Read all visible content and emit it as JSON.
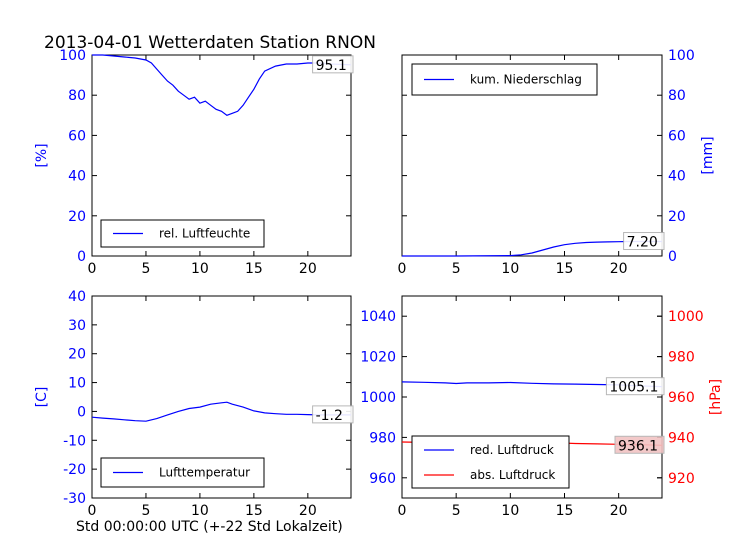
{
  "title": "2013-04-01 Wetterdaten Station RNON",
  "xlabel": "Std 00:00:00 UTC (+-22 Std Lokalzeit)",
  "colors": {
    "blue": "#0000ff",
    "red": "#ff0000",
    "annotation_bg": "#f2c4c4"
  },
  "chart_data": [
    {
      "type": "line",
      "ylabel": "[%]",
      "xlim": [
        0,
        24
      ],
      "ylim": [
        0,
        100
      ],
      "xticks": [
        0,
        5,
        10,
        15,
        20
      ],
      "yticks": [
        0,
        20,
        40,
        60,
        80,
        100
      ],
      "legend_position": "bottom",
      "annotation": "95.1",
      "series": [
        {
          "name": "rel. Luftfeuchte",
          "color": "#0000ff",
          "x": [
            0,
            1,
            2,
            3,
            4,
            5,
            5.5,
            6,
            6.5,
            7,
            7.5,
            8,
            8.5,
            9,
            9.5,
            10,
            10.5,
            11,
            11.5,
            12,
            12.5,
            13,
            13.5,
            14,
            14.5,
            15,
            15.5,
            16,
            17,
            18,
            19,
            20,
            21,
            22,
            23,
            24
          ],
          "y": [
            100,
            100,
            99.5,
            99,
            98.5,
            97.5,
            96,
            93,
            90,
            87,
            85,
            82,
            80,
            78,
            79,
            76,
            77,
            75,
            73,
            72,
            70,
            71,
            72,
            75,
            79,
            83,
            88,
            92,
            94.5,
            95.5,
            95.5,
            96,
            96,
            95.5,
            95.3,
            95.1
          ]
        }
      ]
    },
    {
      "type": "line",
      "ylabel": "[mm]",
      "xlim": [
        0,
        24
      ],
      "ylim": [
        0,
        100
      ],
      "xticks": [
        0,
        5,
        10,
        15,
        20
      ],
      "yticks": [
        0,
        20,
        40,
        60,
        80,
        100
      ],
      "legend_position": "top-left",
      "annotation": "7.20",
      "series": [
        {
          "name": "kum. Niederschlag",
          "color": "#0000ff",
          "x": [
            0,
            5,
            10,
            11,
            12,
            13,
            14,
            15,
            16,
            17,
            18,
            19,
            20,
            21,
            22,
            23,
            24
          ],
          "y": [
            0,
            0,
            0.2,
            0.6,
            1.5,
            3,
            4.5,
            5.6,
            6.3,
            6.7,
            6.9,
            7,
            7.1,
            7.2,
            7.2,
            7.2,
            7.2
          ]
        }
      ]
    },
    {
      "type": "line",
      "ylabel": "[C]",
      "xlim": [
        0,
        24
      ],
      "ylim": [
        -30,
        40
      ],
      "xticks": [
        0,
        5,
        10,
        15,
        20
      ],
      "yticks": [
        -30,
        -20,
        -10,
        0,
        10,
        20,
        30,
        40
      ],
      "legend_position": "bottom",
      "annotation": "-1.2",
      "series": [
        {
          "name": "Lufttemperatur",
          "color": "#0000ff",
          "x": [
            0,
            1,
            2,
            3,
            4,
            5,
            6,
            7,
            8,
            9,
            10,
            11,
            12,
            12.5,
            13,
            14,
            15,
            16,
            17,
            18,
            19,
            20,
            21,
            22,
            23,
            24
          ],
          "y": [
            -2,
            -2.3,
            -2.6,
            -2.9,
            -3.2,
            -3.4,
            -2.5,
            -1.2,
            0,
            1,
            1.5,
            2.5,
            3,
            3.2,
            2.5,
            1.5,
            0.2,
            -0.5,
            -0.8,
            -1,
            -1,
            -1.1,
            -1.2,
            -1.2,
            -1.2,
            -1.2
          ]
        }
      ]
    },
    {
      "type": "line",
      "ylabel": "",
      "ylabel_right": "[hPa]",
      "xlim": [
        0,
        24
      ],
      "ylim": [
        950,
        1050
      ],
      "ylim_right": [
        910,
        1010
      ],
      "xticks": [
        0,
        5,
        10,
        15,
        20
      ],
      "yticks": [
        960,
        980,
        1000,
        1020,
        1040
      ],
      "yticks_right": [
        920,
        940,
        960,
        980,
        1000
      ],
      "legend_position": "bottom-left",
      "annotations": [
        "1005.1",
        "936.1"
      ],
      "series": [
        {
          "name": "red. Luftdruck",
          "color": "#0000ff",
          "axis": "left",
          "x": [
            0,
            2,
            4,
            5,
            6,
            8,
            10,
            12,
            14,
            16,
            18,
            20,
            22,
            24
          ],
          "y": [
            1007.5,
            1007.3,
            1007,
            1006.7,
            1007,
            1007,
            1007.2,
            1006.8,
            1006.5,
            1006.4,
            1006.2,
            1006,
            1005.5,
            1005.1
          ]
        },
        {
          "name": "abs. Luftdruck",
          "color": "#ff0000",
          "axis": "right",
          "x": [
            0,
            2,
            4,
            5,
            6,
            8,
            10,
            12,
            14,
            16,
            18,
            20,
            22,
            24
          ],
          "y": [
            937.7,
            937.5,
            937,
            936.6,
            937,
            937.4,
            937.6,
            937.8,
            937.4,
            937,
            936.8,
            936.6,
            936.4,
            936.1
          ]
        }
      ]
    }
  ]
}
